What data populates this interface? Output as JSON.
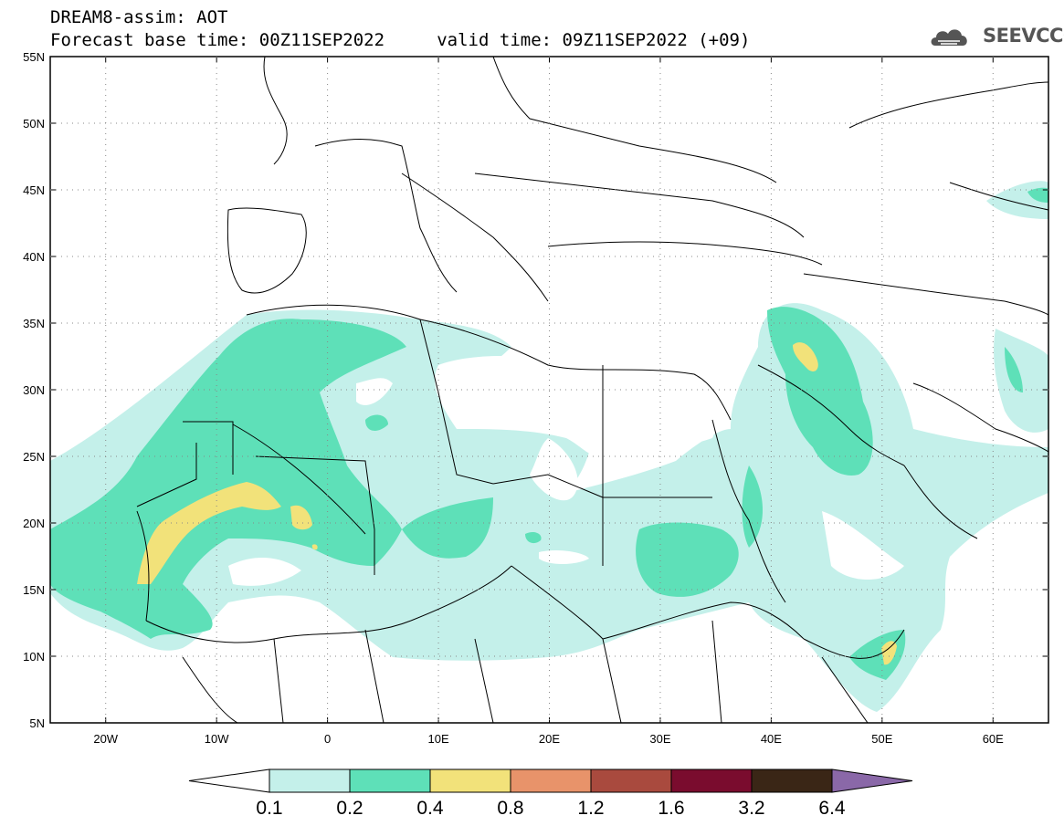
{
  "header": {
    "title_line1": "DREAM8-assim: AOT",
    "title_line2": "Forecast base time: 00Z11SEP2022     valid time: 09Z11SEP2022 (+09)",
    "logo_text": "SEEVCCC"
  },
  "map": {
    "lon_range": [
      -25,
      65
    ],
    "lat_range": [
      5,
      55
    ],
    "lat_labels": [
      "55N",
      "50N",
      "45N",
      "40N",
      "35N",
      "30N",
      "25N",
      "20N",
      "15N",
      "10N",
      "5N"
    ],
    "lon_labels": [
      "20W",
      "10W",
      "0",
      "10E",
      "20E",
      "30E",
      "40E",
      "50E",
      "60E"
    ]
  },
  "colorbar": {
    "labels": [
      "0.1",
      "0.2",
      "0.4",
      "0.8",
      "1.2",
      "1.6",
      "3.2",
      "6.4"
    ],
    "colors": [
      "#c4f0ea",
      "#5ee0b8",
      "#f2e27a",
      "#e8936a",
      "#a94a3e",
      "#7a0c2e",
      "#3a2616",
      "#8a68a8"
    ]
  },
  "colors": {
    "level1": "#c4f0ea",
    "level2": "#5ee0b8",
    "level3": "#f2e27a",
    "border": "#000000"
  }
}
